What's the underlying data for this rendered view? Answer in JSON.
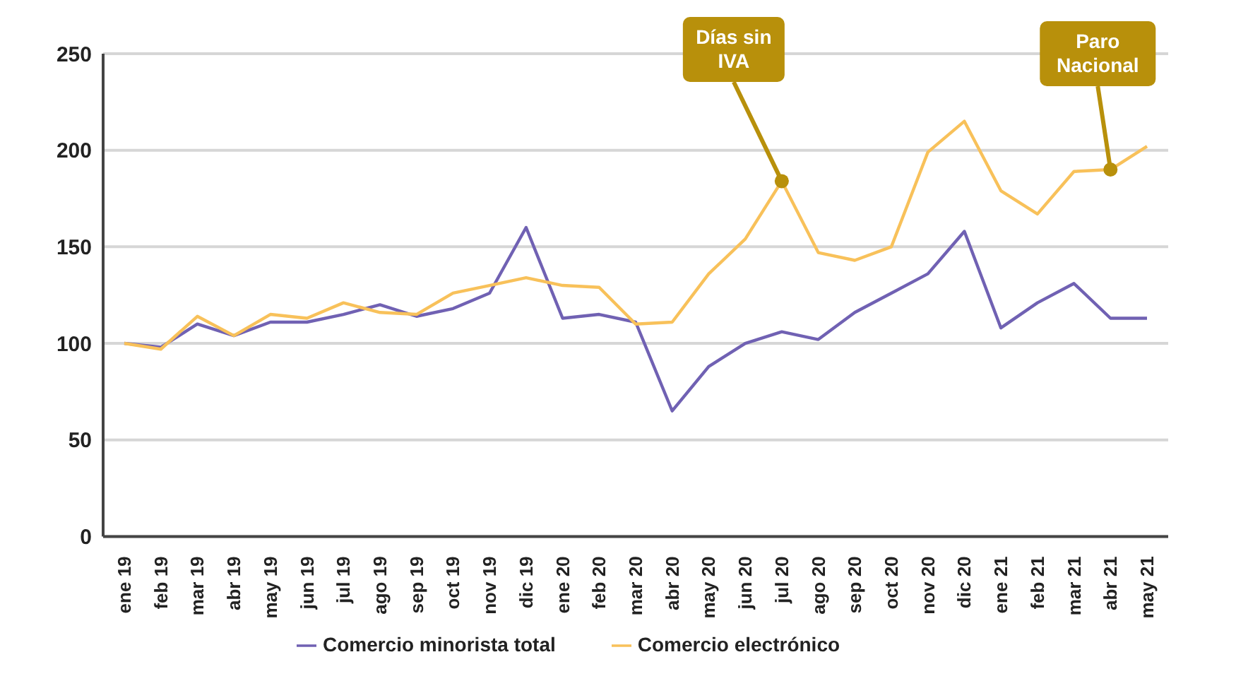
{
  "chart_data": {
    "type": "line",
    "categories": [
      "ene 19",
      "feb 19",
      "mar 19",
      "abr 19",
      "may 19",
      "jun 19",
      "jul 19",
      "ago 19",
      "sep 19",
      "oct 19",
      "nov 19",
      "dic 19",
      "ene 20",
      "feb 20",
      "mar 20",
      "abr 20",
      "may 20",
      "jun 20",
      "jul 20",
      "ago 20",
      "sep 20",
      "oct 20",
      "nov 20",
      "dic 20",
      "ene 21",
      "feb 21",
      "mar 21",
      "abr 21",
      "may 21"
    ],
    "series": [
      {
        "name": "Comercio minorista total",
        "color": "#7061b3",
        "values": [
          100,
          98,
          110,
          104,
          111,
          111,
          115,
          120,
          114,
          118,
          126,
          160,
          113,
          115,
          111,
          65,
          88,
          100,
          106,
          102,
          116,
          126,
          136,
          158,
          108,
          121,
          131,
          113,
          113
        ]
      },
      {
        "name": "Comercio electrónico",
        "color": "#f8c15a",
        "values": [
          100,
          97,
          114,
          104,
          115,
          113,
          121,
          116,
          115,
          126,
          130,
          134,
          130,
          129,
          110,
          111,
          136,
          154,
          184,
          147,
          143,
          150,
          199,
          215,
          179,
          167,
          189,
          190,
          202
        ]
      }
    ],
    "ylim": [
      0,
      250
    ],
    "yticks": [
      0,
      50,
      100,
      150,
      200,
      250
    ],
    "grid": "y",
    "legend": "bottom",
    "marker": "none",
    "line_style": "solid",
    "annotations": [
      {
        "text": "Días sin IVA",
        "x": "jul 20",
        "y": 184
      },
      {
        "text": "Paro Nacional",
        "x": "abr 21",
        "y": 190
      }
    ]
  }
}
